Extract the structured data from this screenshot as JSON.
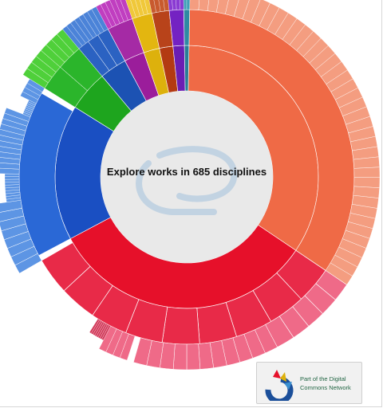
{
  "center": {
    "text": "Explore works in 685 disciplines"
  },
  "badge": {
    "line1": "Part of the Digital",
    "line2": "Commons Network"
  },
  "colors": {
    "orange": "#ef6a46",
    "orange_light": "#f49d80",
    "red": "#e6102a",
    "red_mid": "#e82a48",
    "pink": "#ef6a88",
    "blue": "#1a4fc2",
    "blue_mid": "#2a68d6",
    "blue_light": "#5d95e4",
    "green": "#1ea51e",
    "green_light": "#4fd03a",
    "navy": "#1c52b3",
    "magenta": "#9b1d9b",
    "amber": "#ddb10c",
    "brown": "#b33a12",
    "purple": "#6b1eb3",
    "teal": "#2a7e96",
    "center_gray": "#e9e9e9",
    "badge_text": "#226644"
  },
  "icons": {
    "center_logo": "digital-commons-swirl-icon",
    "badge_logo": "digital-commons-network-logo-icon"
  }
}
